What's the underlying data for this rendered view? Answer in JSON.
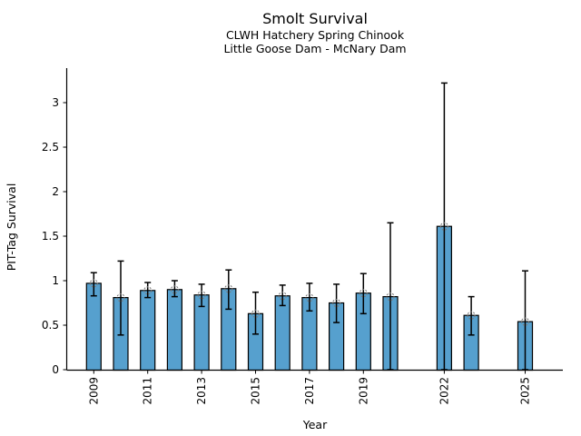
{
  "figure": {
    "title": "Smolt Survival",
    "subtitle1": "CLWH Hatchery Spring Chinook",
    "subtitle2": "Little Goose Dam - McNary Dam"
  },
  "chart_data": {
    "type": "bar",
    "title": "Smolt Survival",
    "subtitle1": "CLWH Hatchery Spring Chinook",
    "subtitle2": "Little Goose Dam - McNary Dam",
    "xlabel": "Year",
    "ylabel": "PIT-Tag Survival",
    "x": [
      2009,
      2010,
      2011,
      2012,
      2013,
      2014,
      2015,
      2016,
      2017,
      2018,
      2019,
      2020,
      2022,
      2023,
      2025
    ],
    "values": [
      0.97,
      0.81,
      0.89,
      0.9,
      0.84,
      0.91,
      0.63,
      0.83,
      0.81,
      0.75,
      0.86,
      0.82,
      1.61,
      0.61,
      0.54
    ],
    "error_low": [
      0.83,
      0.39,
      0.81,
      0.82,
      0.71,
      0.68,
      0.4,
      0.72,
      0.66,
      0.53,
      0.63,
      0.0,
      0.0,
      0.39,
      0.0
    ],
    "error_high": [
      1.09,
      1.22,
      0.98,
      1.0,
      0.96,
      1.12,
      0.87,
      0.95,
      0.97,
      0.96,
      1.08,
      1.65,
      3.22,
      0.82,
      1.11
    ],
    "xticks": [
      2009,
      2011,
      2013,
      2015,
      2017,
      2019,
      2022,
      2025
    ],
    "xticklabels": [
      "2009",
      "2011",
      "2013",
      "2015",
      "2017",
      "2019",
      "2022",
      "2025"
    ],
    "yticks": [
      0,
      0.5,
      1,
      1.5,
      2,
      2.5,
      3
    ],
    "yticklabels": [
      "0",
      "0.5",
      "1",
      "1.5",
      "2",
      "2.5",
      "3"
    ],
    "xlim": [
      2008.0,
      2026.4
    ],
    "ylim": [
      0,
      3.39
    ],
    "grid": false,
    "legend": null,
    "bar_color": "#56a0ce",
    "bar_edge_color": "#000000",
    "error_color": "#000000",
    "marker": "open-circle-dashed",
    "marker_edge_color": "#7a7a7a"
  }
}
